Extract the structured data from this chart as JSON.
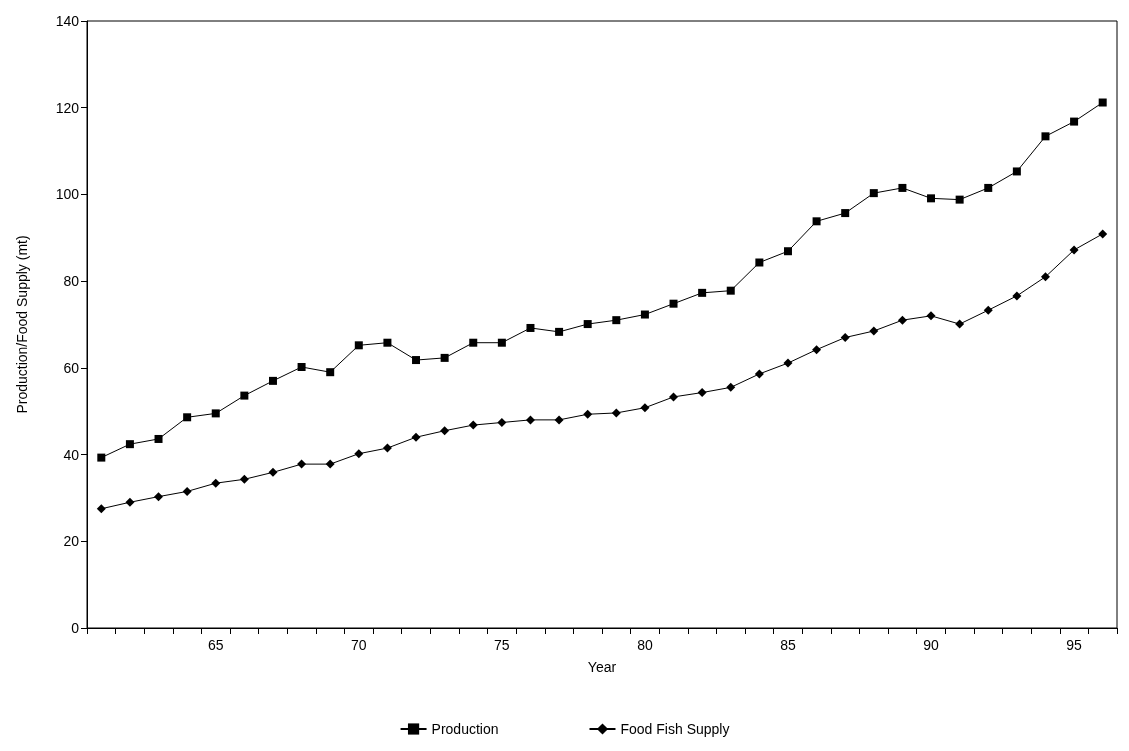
{
  "chart_data": {
    "type": "line",
    "xlabel": "Year",
    "ylabel": "Production/Food Supply (mt)",
    "categories": [
      null,
      null,
      null,
      null,
      "65",
      null,
      null,
      null,
      null,
      "70",
      null,
      null,
      null,
      null,
      "75",
      null,
      null,
      null,
      null,
      "80",
      null,
      null,
      null,
      null,
      "85",
      null,
      null,
      null,
      null,
      "90",
      null,
      null,
      null,
      null,
      "95",
      null
    ],
    "series": [
      {
        "name": "Production",
        "color": "#000000",
        "marker": "square",
        "values": [
          39.3,
          42.4,
          43.6,
          48.6,
          49.5,
          53.6,
          57,
          60.2,
          59,
          65.2,
          65.8,
          61.8,
          62.3,
          65.8,
          65.8,
          69.2,
          68.3,
          70.1,
          71,
          72.3,
          74.8,
          77.3,
          77.8,
          84.3,
          86.9,
          93.8,
          95.7,
          100.3,
          101.5,
          99.1,
          98.8,
          101.5,
          105.3,
          113.4,
          116.8,
          121.2
        ]
      },
      {
        "name": "Food Fish Supply",
        "color": "#000000",
        "marker": "diamond",
        "values": [
          27.5,
          29,
          30.3,
          31.5,
          33.4,
          34.3,
          35.9,
          37.8,
          37.8,
          40.2,
          41.5,
          44,
          45.5,
          46.8,
          47.4,
          48,
          48,
          49.3,
          49.6,
          50.8,
          53.3,
          54.3,
          55.5,
          58.6,
          61.1,
          64.2,
          67,
          68.5,
          71,
          72,
          70.1,
          73.3,
          76.6,
          81,
          87.2,
          90.9
        ]
      }
    ],
    "ylim": [
      0,
      140
    ],
    "yticks": [
      0,
      20,
      40,
      60,
      80,
      100,
      120,
      140
    ],
    "grid": false,
    "legend": "bottom",
    "line_style": "solid"
  }
}
